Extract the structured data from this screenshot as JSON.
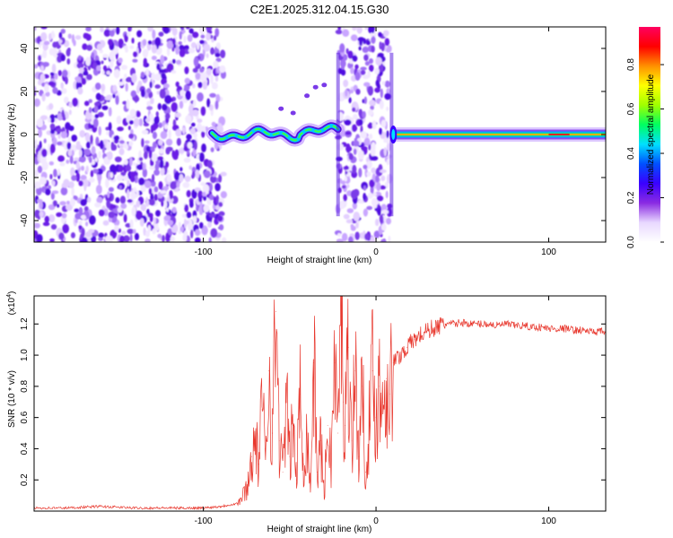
{
  "chart_data": [
    {
      "type": "heatmap",
      "title": "C2E1.2025.312.04.15.G30",
      "xlabel": "Height of straight line (km)",
      "ylabel": "Frequency (Hz)",
      "xlim": [
        -198,
        133
      ],
      "ylim": [
        -50,
        50
      ],
      "x_ticks": [
        -100,
        0,
        100
      ],
      "y_ticks": [
        -40,
        -20,
        0,
        20,
        40
      ],
      "colorbar": {
        "label": "Normalized spectral amplitude",
        "range": [
          0,
          0.97
        ],
        "ticks": [
          "0.0",
          "0.2",
          "0.4",
          "0.6",
          "0.8"
        ],
        "colors": [
          "#ffffff",
          "#e8d8ff",
          "#8a2be2",
          "#3a00ff",
          "#0050ff",
          "#00e0ff",
          "#00ff60",
          "#a0ff00",
          "#ffff00",
          "#ff9000",
          "#ff0000",
          "#ff0060"
        ]
      },
      "regions": [
        {
          "name": "noise-left",
          "x": [
            -198,
            -88
          ],
          "freq": [
            -50,
            50
          ],
          "amplitude": 0.2
        },
        {
          "name": "signal-trace-1",
          "x": [
            -95,
            -22
          ],
          "freq": [
            -4,
            5
          ],
          "amplitude": 0.6
        },
        {
          "name": "noise-mid",
          "x": [
            -22,
            8
          ],
          "freq": [
            -50,
            50
          ],
          "amplitude": 0.2
        },
        {
          "name": "signal-trace-2",
          "x": [
            10,
            133
          ],
          "freq": [
            -1,
            1
          ],
          "amplitude": 0.9
        }
      ]
    },
    {
      "type": "line",
      "title": "",
      "xlabel": "Height of straight line (km)",
      "ylabel": "SNR (10 * v/v)",
      "multiplier": "(x10",
      "multiplier_exp": "4",
      "xlim": [
        -198,
        133
      ],
      "ylim": [
        0,
        1.38
      ],
      "x_ticks": [
        -100,
        0,
        100
      ],
      "y_ticks": [
        0.2,
        0.4,
        0.6,
        0.8,
        1.0,
        1.2
      ],
      "line_color": "#e8372d",
      "series": [
        {
          "x": [
            -198,
            -180,
            -160,
            -140,
            -120,
            -100,
            -90,
            -80,
            -78,
            -76,
            -74,
            -72,
            -70,
            -68,
            -66,
            -64,
            -62,
            -60,
            -58,
            -56,
            -54,
            -52,
            -50,
            -48,
            -46,
            -44,
            -42,
            -40,
            -38,
            -36,
            -34,
            -32,
            -30,
            -28,
            -26,
            -24,
            -22,
            -20,
            -19,
            -18,
            -16,
            -14,
            -12,
            -10,
            -8,
            -6,
            -4,
            -2,
            0,
            2,
            4,
            6,
            8,
            10,
            14,
            18,
            22,
            26,
            30,
            35,
            40,
            45,
            50,
            55,
            60,
            65,
            70,
            75,
            80,
            85,
            90,
            95,
            100,
            105,
            110,
            115,
            120,
            125,
            130,
            133
          ],
          "values": [
            0.02,
            0.02,
            0.03,
            0.02,
            0.02,
            0.02,
            0.03,
            0.05,
            0.08,
            0.12,
            0.18,
            0.35,
            0.45,
            0.3,
            0.65,
            0.4,
            0.9,
            0.5,
            1.28,
            0.45,
            0.25,
            0.7,
            0.35,
            0.55,
            0.2,
            0.75,
            0.3,
            0.5,
            0.15,
            0.95,
            0.25,
            0.45,
            0.1,
            0.55,
            0.3,
            0.95,
            0.5,
            1.38,
            0.7,
            0.55,
            1.05,
            0.45,
            0.9,
            0.35,
            0.8,
            0.25,
            0.55,
            0.9,
            0.6,
            0.8,
            0.7,
            0.85,
            0.75,
            0.95,
            1.0,
            1.05,
            1.1,
            1.13,
            1.16,
            1.18,
            1.2,
            1.2,
            1.21,
            1.2,
            1.2,
            1.2,
            1.19,
            1.2,
            1.19,
            1.19,
            1.18,
            1.18,
            1.17,
            1.17,
            1.17,
            1.16,
            1.16,
            1.15,
            1.15,
            1.15
          ]
        }
      ]
    }
  ]
}
